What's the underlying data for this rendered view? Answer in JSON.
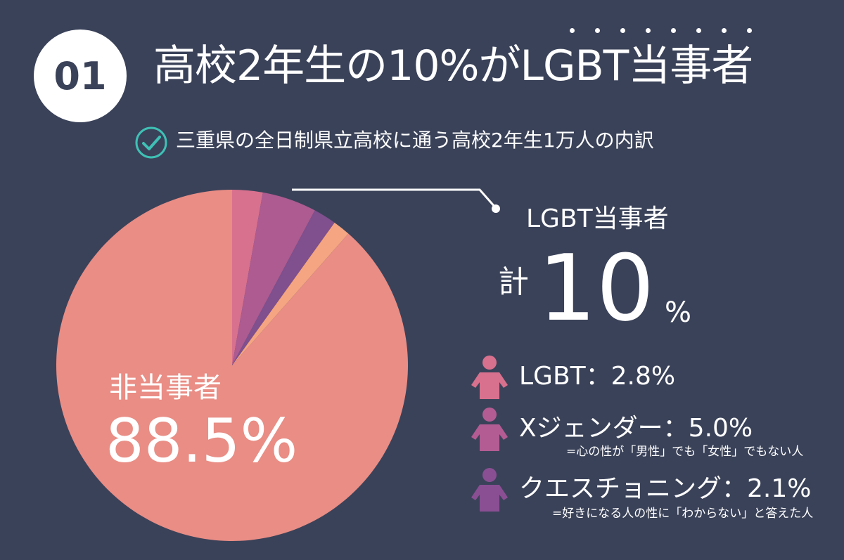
{
  "header": {
    "number": "01",
    "title": "高校2年生の10%がLGBT当事者",
    "subtitle": "三重県の全日制県立高校に通う高校2年生1万人の内訳"
  },
  "callout": {
    "heading": "LGBT当事者",
    "total_prefix": "計",
    "total_value": "10",
    "total_unit": "%"
  },
  "legend": [
    {
      "label": "LGBT：2.8%",
      "note": "",
      "color": "#d8718e"
    },
    {
      "label": "Xジェンダー：5.0%",
      "note": "=心の性が「男性」でも「女性」でもない人",
      "color": "#b35c93"
    },
    {
      "label": "クエスチョニング：2.1%",
      "note": "=好きになる人の性に「わからない」と答えた人",
      "color": "#8a4f93"
    }
  ],
  "chart_data": {
    "type": "pie",
    "start": "top",
    "direction": "clockwise",
    "slices": [
      {
        "name": "LGBT",
        "value": 2.8,
        "color": "#d8718e"
      },
      {
        "name": "Xジェンダー",
        "value": 5.0,
        "color": "#ad5b90"
      },
      {
        "name": "クエスチョニング",
        "value": 2.1,
        "color": "#7f4f8e"
      },
      {
        "name": "",
        "value": 1.6,
        "color": "#f5a581"
      },
      {
        "name": "非当事者",
        "value": 88.5,
        "color": "#e98d85"
      }
    ],
    "data_labels": {
      "non_label": "非当事者",
      "non_value": "88.5%"
    }
  }
}
